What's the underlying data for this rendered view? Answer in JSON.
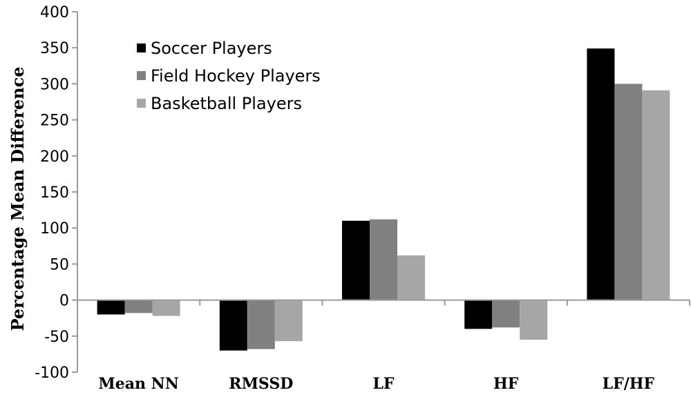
{
  "chart_data": {
    "type": "bar",
    "categories": [
      "Mean NN",
      "RMSSD",
      "LF",
      "HF",
      "LF/HF"
    ],
    "series": [
      {
        "name": "Soccer Players",
        "color": "#000000",
        "values": [
          -20,
          -70,
          110,
          -40,
          349
        ]
      },
      {
        "name": "Field Hockey Players",
        "color": "#808080",
        "values": [
          -18,
          -68,
          112,
          -38,
          300
        ]
      },
      {
        "name": "Basketball Players",
        "color": "#a6a6a6",
        "values": [
          -22,
          -57,
          62,
          -55,
          291
        ]
      }
    ],
    "title": "",
    "xlabel": "",
    "ylabel": "Percentage Mean Difference",
    "ylim": [
      -100,
      400
    ],
    "yticks": [
      -100,
      -50,
      0,
      50,
      100,
      150,
      200,
      250,
      300,
      350,
      400
    ],
    "grid": false,
    "legend_position": "top-left"
  }
}
